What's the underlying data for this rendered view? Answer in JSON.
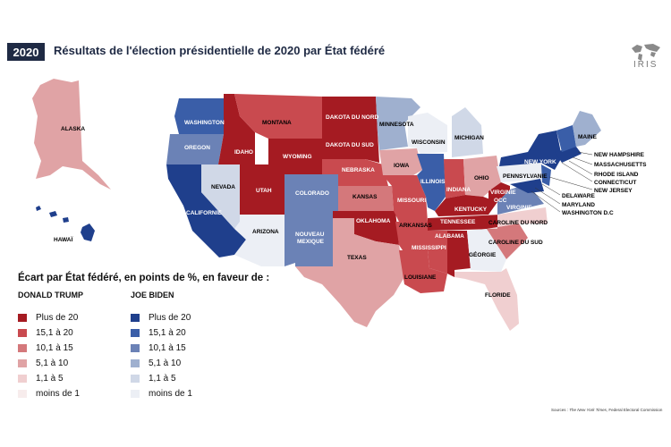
{
  "header": {
    "year": "2020",
    "title": "Résultats de l'élection présidentielle de 2020 par État fédéré"
  },
  "logo": {
    "text": "IRIS",
    "icon": "globe-icon"
  },
  "legend": {
    "title": "Écart par État fédéré, en points de %, en faveur de :",
    "trump_header": "DONALD TRUMP",
    "biden_header": "JOE BIDEN",
    "trump_items": [
      {
        "label": "Plus de 20",
        "color": "#a51b22"
      },
      {
        "label": "15,1 à 20",
        "color": "#c94a4f"
      },
      {
        "label": "10,1 à 15",
        "color": "#d4787b"
      },
      {
        "label": "5,1 à 10",
        "color": "#e0a3a5"
      },
      {
        "label": "1,1 à 5",
        "color": "#f0cfd0"
      },
      {
        "label": "moins de 1",
        "color": "#f7ecec"
      }
    ],
    "biden_items": [
      {
        "label": "Plus de 20",
        "color": "#1f3f8c"
      },
      {
        "label": "15,1 à 20",
        "color": "#3a5ea8"
      },
      {
        "label": "10,1 à 15",
        "color": "#6b82b6"
      },
      {
        "label": "5,1 à 10",
        "color": "#9fb0cf"
      },
      {
        "label": "1,1 à 5",
        "color": "#d0d8e7"
      },
      {
        "label": "moins de 1",
        "color": "#eceff5"
      }
    ]
  },
  "states": {
    "alaska": "ALASKA",
    "hawaii": "HAWAÏ",
    "washington": "WASHINGTON",
    "oregon": "OREGON",
    "california": "CALIFORNIE",
    "nevada": "NEVADA",
    "idaho": "IDAHO",
    "montana": "MONTANA",
    "wyoming": "WYOMING",
    "utah": "UTAH",
    "arizona": "ARIZONA",
    "colorado": "COLORADO",
    "new_mexico": "NOUVEAU MEXIQUE",
    "north_dakota": "DAKOTA DU NORD",
    "south_dakota": "DAKOTA DU SUD",
    "nebraska": "NEBRASKA",
    "kansas": "KANSAS",
    "oklahoma": "OKLAHOMA",
    "texas": "TEXAS",
    "minnesota": "MINNESOTA",
    "iowa": "IOWA",
    "missouri": "MISSOURI",
    "arkansas": "ARKANSAS",
    "louisiana": "LOUISIANE",
    "wisconsin": "WISCONSIN",
    "illinois": "ILLINOIS",
    "michigan": "MICHIGAN",
    "indiana": "INDIANA",
    "ohio": "OHIO",
    "kentucky": "KENTUCKY",
    "tennessee": "TENNESSEE",
    "mississippi": "MISSISSIPPI",
    "alabama": "ALABAMA",
    "georgia": "GÉORGIE",
    "florida": "FLORIDE",
    "south_carolina": "CAROLINE DU SUD",
    "north_carolina": "CAROLINE DU NORD",
    "virginia": "VIRGINIE",
    "west_virginia_1": "VIRGINIE",
    "west_virginia_2": "OCC",
    "pennsylvania": "PENNSYLVANIE",
    "new_york": "NEW YORK",
    "maine": "MAINE",
    "new_hampshire": "NEW HAMPSHIRE",
    "massachusetts": "MASSACHUSETTS",
    "rhode_island": "RHODE ISLAND",
    "connecticut": "CONNECTICUT",
    "new_jersey": "NEW JERSEY",
    "delaware": "DELAWARE",
    "maryland": "MARYLAND",
    "dc": "WASHINGTON D.C"
  },
  "sources": {
    "prefix": "Sources : ",
    "publication": "The New York Times",
    "suffix": ", Federal Electoral Commission"
  }
}
